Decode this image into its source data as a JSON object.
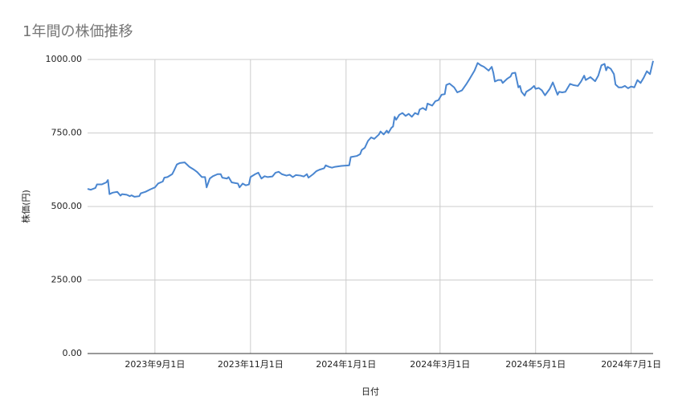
{
  "chart_data": {
    "type": "line",
    "title": "1年間の株価推移",
    "x_label": "日付",
    "y_label": "株価(円)",
    "color": "#4a86d0",
    "grid": true,
    "x": [
      "2023-07-20",
      "2023-07-22",
      "2023-07-25",
      "2023-07-26",
      "2023-07-29",
      "2023-08-01",
      "2023-08-02",
      "2023-08-03",
      "2023-08-05",
      "2023-08-08",
      "2023-08-10",
      "2023-08-11",
      "2023-08-14",
      "2023-08-16",
      "2023-08-17",
      "2023-08-19",
      "2023-08-22",
      "2023-08-23",
      "2023-08-26",
      "2023-08-29",
      "2023-09-01",
      "2023-09-03",
      "2023-09-06",
      "2023-09-07",
      "2023-09-09",
      "2023-09-12",
      "2023-09-13",
      "2023-09-15",
      "2023-09-17",
      "2023-09-20",
      "2023-09-23",
      "2023-09-26",
      "2023-09-28",
      "2023-10-01",
      "2023-10-03",
      "2023-10-04",
      "2023-10-06",
      "2023-10-08",
      "2023-10-11",
      "2023-10-13",
      "2023-10-14",
      "2023-10-17",
      "2023-10-18",
      "2023-10-20",
      "2023-10-22",
      "2023-10-24",
      "2023-10-25",
      "2023-10-27",
      "2023-10-29",
      "2023-10-31",
      "2023-11-01",
      "2023-11-04",
      "2023-11-06",
      "2023-11-08",
      "2023-11-10",
      "2023-11-12",
      "2023-11-15",
      "2023-11-17",
      "2023-11-19",
      "2023-11-21",
      "2023-11-24",
      "2023-11-26",
      "2023-11-28",
      "2023-11-30",
      "2023-12-03",
      "2023-12-05",
      "2023-12-07",
      "2023-12-08",
      "2023-12-11",
      "2023-12-13",
      "2023-12-15",
      "2023-12-18",
      "2023-12-19",
      "2023-12-21",
      "2023-12-23",
      "2023-12-25",
      "2023-12-29",
      "2024-01-03",
      "2024-01-04",
      "2024-01-08",
      "2024-01-10",
      "2024-01-11",
      "2024-01-13",
      "2024-01-15",
      "2024-01-17",
      "2024-01-19",
      "2024-01-22",
      "2024-01-23",
      "2024-01-25",
      "2024-01-27",
      "2024-01-28",
      "2024-01-30",
      "2024-01-31",
      "2024-02-01",
      "2024-02-02",
      "2024-02-04",
      "2024-02-06",
      "2024-02-08",
      "2024-02-10",
      "2024-02-12",
      "2024-02-14",
      "2024-02-16",
      "2024-02-17",
      "2024-02-19",
      "2024-02-21",
      "2024-02-22",
      "2024-02-25",
      "2024-02-27",
      "2024-02-29",
      "2024-03-02",
      "2024-03-04",
      "2024-03-05",
      "2024-03-07",
      "2024-03-10",
      "2024-03-12",
      "2024-03-15",
      "2024-03-18",
      "2024-03-20",
      "2024-03-23",
      "2024-03-25",
      "2024-03-27",
      "2024-03-29",
      "2024-04-01",
      "2024-04-03",
      "2024-04-04",
      "2024-04-05",
      "2024-04-07",
      "2024-04-09",
      "2024-04-10",
      "2024-04-13",
      "2024-04-15",
      "2024-04-16",
      "2024-04-18",
      "2024-04-20",
      "2024-04-21",
      "2024-04-22",
      "2024-04-24",
      "2024-04-25",
      "2024-04-28",
      "2024-04-30",
      "2024-05-01",
      "2024-05-03",
      "2024-05-05",
      "2024-05-07",
      "2024-05-10",
      "2024-05-12",
      "2024-05-15",
      "2024-05-16",
      "2024-05-18",
      "2024-05-20",
      "2024-05-23",
      "2024-05-25",
      "2024-05-28",
      "2024-05-30",
      "2024-06-01",
      "2024-06-02",
      "2024-06-05",
      "2024-06-08",
      "2024-06-10",
      "2024-06-12",
      "2024-06-14",
      "2024-06-15",
      "2024-06-16",
      "2024-06-18",
      "2024-06-20",
      "2024-06-21",
      "2024-06-23",
      "2024-06-25",
      "2024-06-27",
      "2024-06-29",
      "2024-07-01",
      "2024-07-03",
      "2024-07-05",
      "2024-07-07",
      "2024-07-09",
      "2024-07-11",
      "2024-07-13",
      "2024-07-15"
    ],
    "values": [
      560,
      557,
      563,
      575,
      575,
      582,
      590,
      542,
      547,
      550,
      537,
      542,
      540,
      535,
      538,
      533,
      535,
      545,
      550,
      558,
      565,
      578,
      585,
      598,
      600,
      610,
      620,
      643,
      648,
      650,
      635,
      625,
      617,
      600,
      600,
      565,
      595,
      603,
      610,
      610,
      598,
      595,
      600,
      582,
      580,
      578,
      565,
      578,
      572,
      575,
      600,
      610,
      615,
      595,
      603,
      600,
      602,
      615,
      618,
      610,
      605,
      608,
      600,
      607,
      605,
      602,
      610,
      598,
      610,
      620,
      625,
      630,
      640,
      635,
      632,
      635,
      638,
      640,
      668,
      672,
      678,
      692,
      700,
      723,
      735,
      730,
      745,
      755,
      745,
      758,
      750,
      768,
      772,
      805,
      795,
      812,
      818,
      808,
      815,
      805,
      818,
      813,
      830,
      835,
      828,
      850,
      843,
      858,
      862,
      880,
      882,
      913,
      918,
      905,
      888,
      895,
      918,
      935,
      962,
      988,
      980,
      975,
      962,
      975,
      955,
      925,
      930,
      930,
      920,
      935,
      942,
      953,
      955,
      905,
      910,
      890,
      877,
      890,
      900,
      910,
      900,
      903,
      895,
      878,
      900,
      922,
      880,
      890,
      888,
      890,
      917,
      913,
      910,
      925,
      945,
      930,
      940,
      926,
      945,
      980,
      985,
      963,
      975,
      968,
      950,
      915,
      905,
      905,
      910,
      902,
      908,
      905,
      930,
      920,
      938,
      960,
      950,
      995
    ],
    "xlim": [
      "2023-07-20",
      "2024-07-15"
    ],
    "xticks": [
      {
        "value": "2023-09-01",
        "label": "2023年9月1日"
      },
      {
        "value": "2023-11-01",
        "label": "2023年11月1日"
      },
      {
        "value": "2024-01-01",
        "label": "2024年1月1日"
      },
      {
        "value": "2024-03-01",
        "label": "2024年3月1日"
      },
      {
        "value": "2024-05-01",
        "label": "2024年5月1日"
      },
      {
        "value": "2024-07-01",
        "label": "2024年7月1日"
      }
    ],
    "ylim": [
      0,
      1000
    ],
    "yticks": [
      {
        "value": 0,
        "label": "0.00"
      },
      {
        "value": 250,
        "label": "250.00"
      },
      {
        "value": 500,
        "label": "500.00"
      },
      {
        "value": 750,
        "label": "750.00"
      },
      {
        "value": 1000,
        "label": "1000.00"
      }
    ]
  }
}
